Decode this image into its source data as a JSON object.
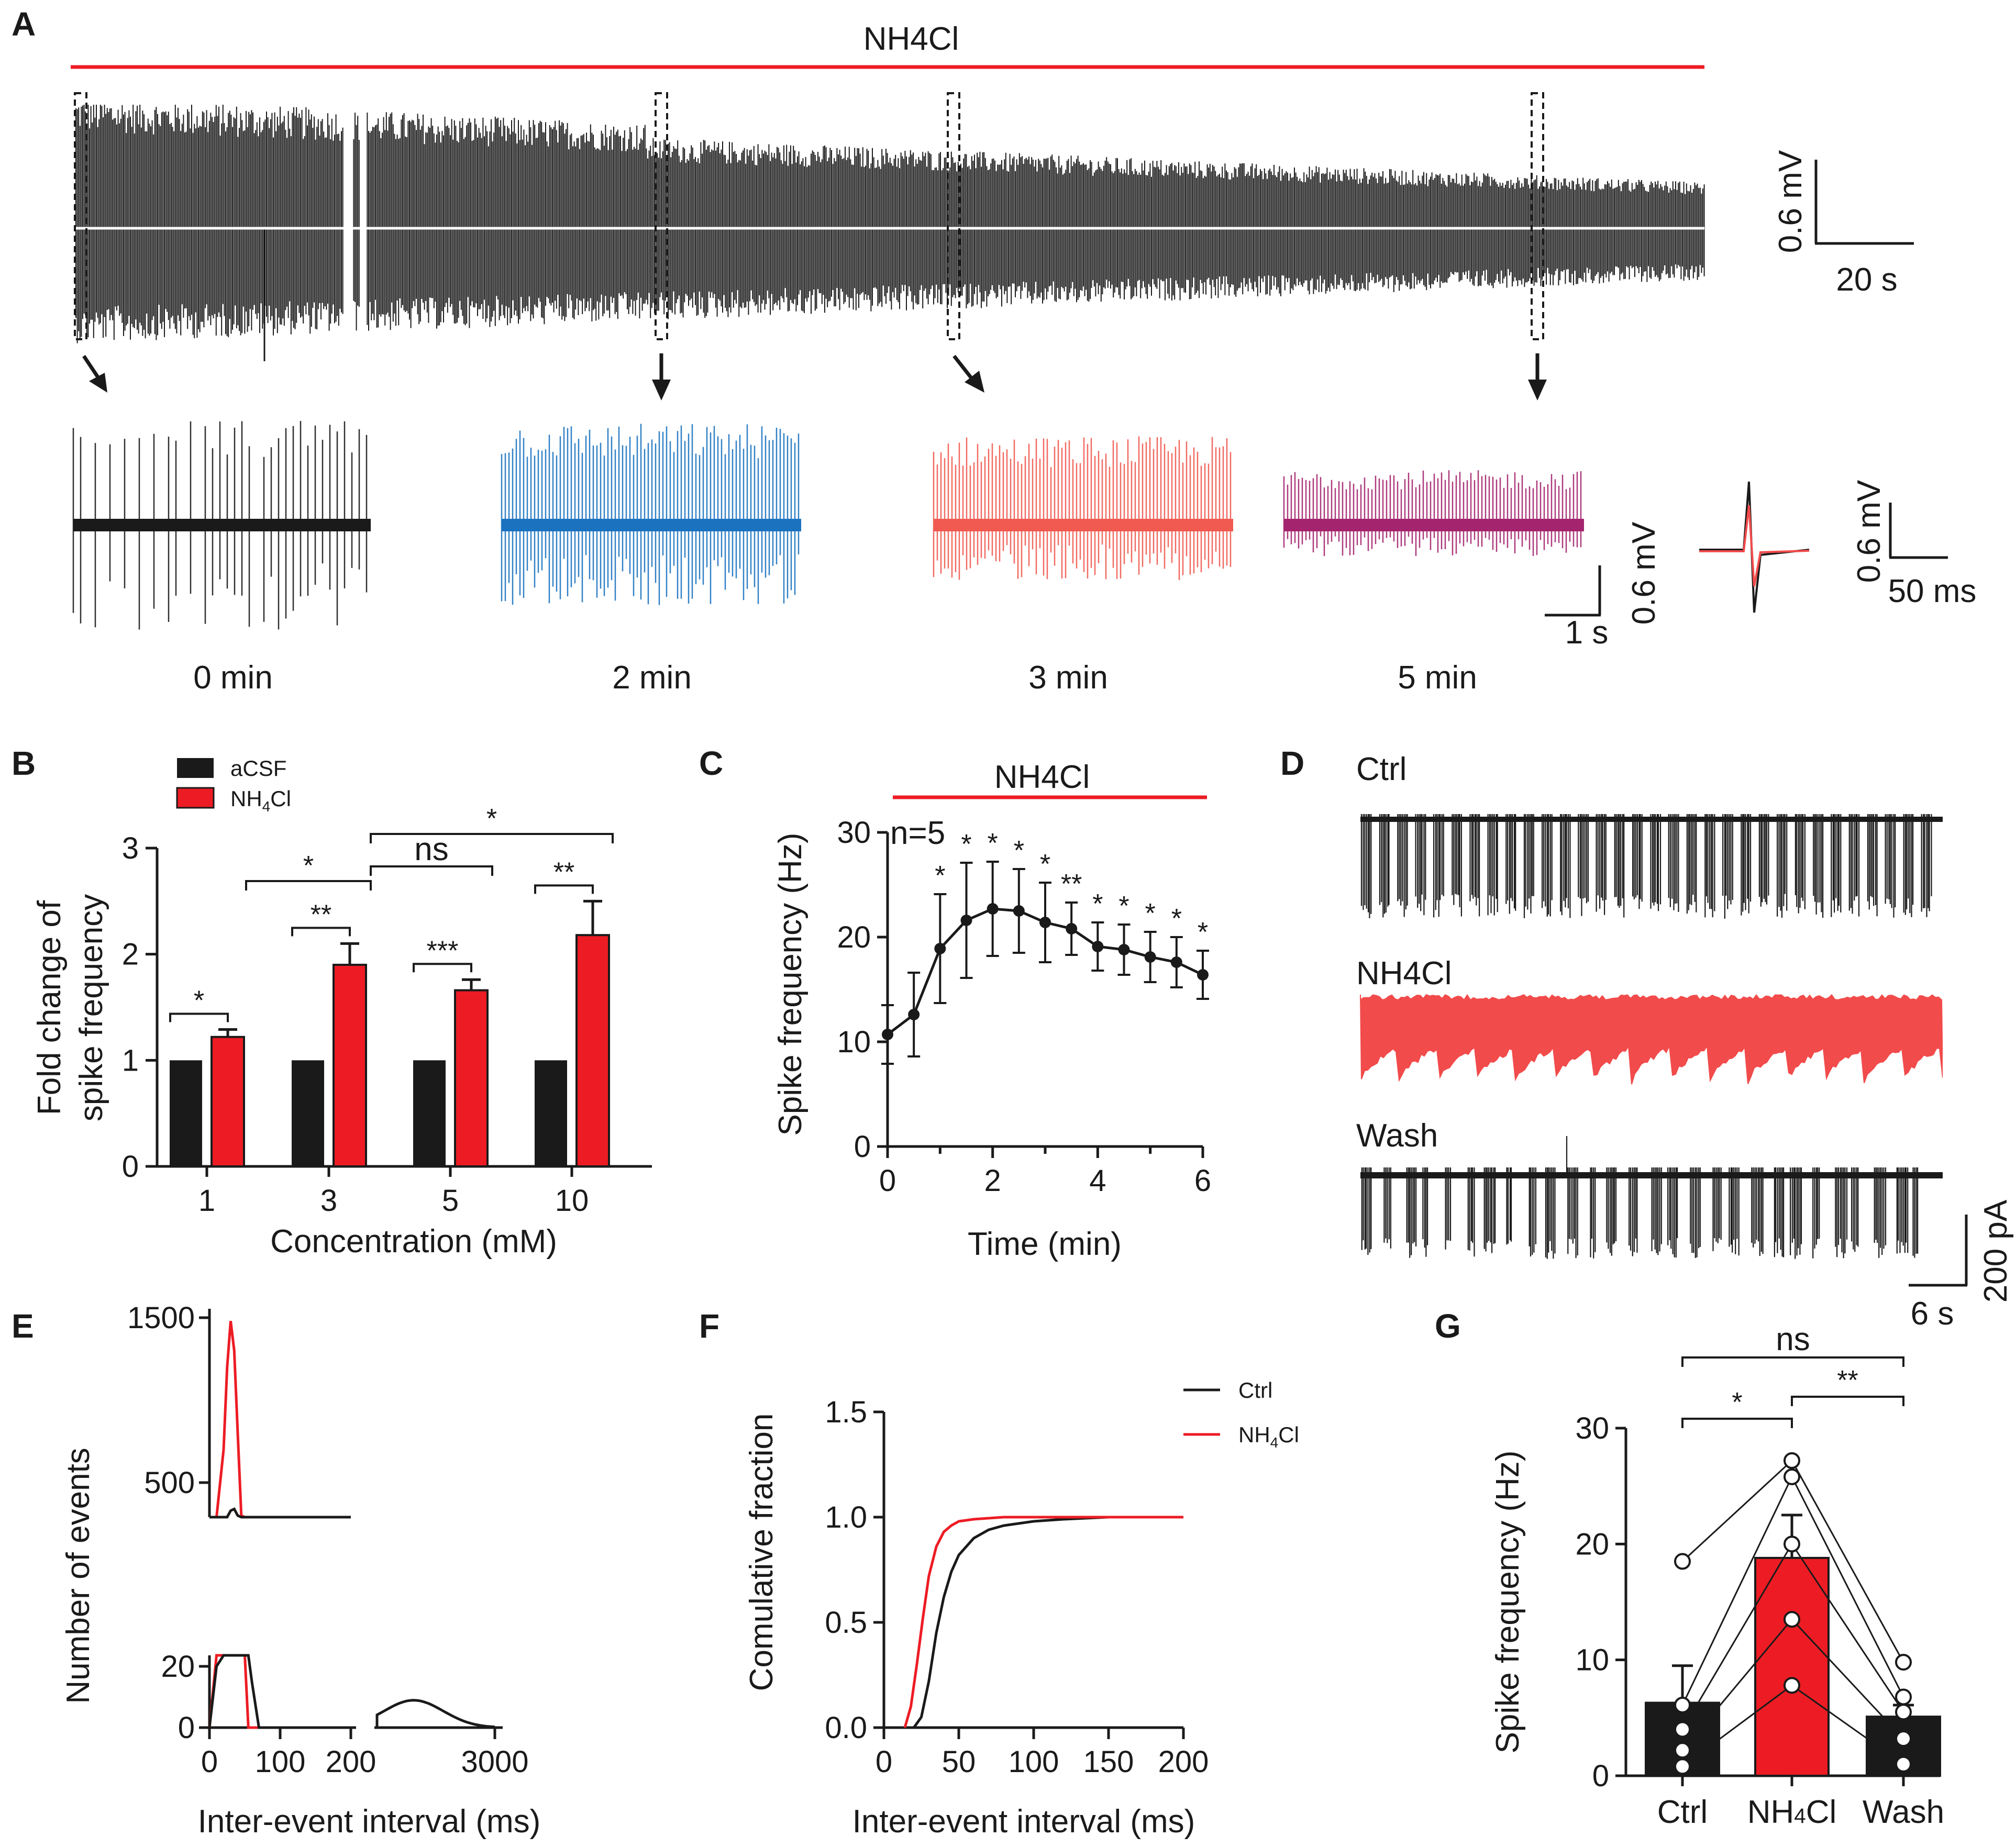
{
  "colors": {
    "black": "#1a1a1a",
    "red": "#ed1c24",
    "red_trace": "#f24b4b",
    "blue": "#1b73c0",
    "salmon": "#f05a50",
    "magenta": "#a4256e",
    "white": "#ffffff"
  },
  "panel_letters": [
    "A",
    "B",
    "C",
    "D",
    "E",
    "F",
    "G"
  ],
  "panelA": {
    "drug_label": "NH4Cl",
    "scale1": {
      "vertical": "0.6 mV",
      "horizontal": "20 s"
    },
    "insets": [
      {
        "time": "0 min",
        "color": "#1a1a1a"
      },
      {
        "time": "2 min",
        "color": "#1b73c0"
      },
      {
        "time": "3 min",
        "color": "#f05a50"
      },
      {
        "time": "5 min",
        "color": "#a4256e"
      }
    ],
    "scale2": {
      "vertical": "0.6 mV",
      "horizontal": "1 s"
    },
    "scale3": {
      "vertical": "0.6 mV",
      "horizontal": "50 ms"
    }
  },
  "panelD": {
    "traces": [
      "Ctrl",
      "NH4Cl",
      "Wash"
    ],
    "scale": {
      "vertical": "200 pA",
      "horizontal": "6 s"
    }
  },
  "chart_data": [
    {
      "id": "B",
      "type": "bar",
      "ylabel_line1": "Fold change of",
      "ylabel_line2": "spike frequency",
      "xlabel": "Concentration (mM)",
      "categories": [
        "1",
        "3",
        "5",
        "10"
      ],
      "yticks": [
        "0",
        "1",
        "2",
        "3"
      ],
      "ylim": [
        0,
        3
      ],
      "legend": [
        "aCSF",
        "NH4Cl"
      ],
      "series": [
        {
          "name": "aCSF",
          "values": [
            1,
            1,
            1,
            1
          ],
          "errors": [
            0,
            0,
            0,
            0
          ]
        },
        {
          "name": "NH4Cl",
          "values": [
            1.22,
            1.9,
            1.66,
            2.18
          ],
          "errors": [
            0.07,
            0.2,
            0.1,
            0.32
          ]
        }
      ],
      "within_sig": [
        "*",
        "**",
        "***",
        "**"
      ],
      "between_sig": [
        {
          "from": "1",
          "to": "3",
          "label": "*"
        },
        {
          "from": "3",
          "to": "5",
          "label": "ns"
        },
        {
          "from": "3",
          "to": "10",
          "label": "*"
        }
      ]
    },
    {
      "id": "C",
      "type": "line",
      "bar_label": "NH4Cl",
      "n_label": "n=5",
      "ylabel": "Spike frequency (Hz)",
      "xlabel": "Time (min)",
      "xticks": [
        "0",
        "2",
        "4",
        "6"
      ],
      "yticks": [
        "0",
        "10",
        "20",
        "30"
      ],
      "xlim": [
        0,
        6
      ],
      "ylim": [
        0,
        30
      ],
      "x": [
        0,
        0.5,
        1,
        1.5,
        2,
        2.5,
        3,
        3.5,
        4,
        4.5,
        5,
        5.5,
        6
      ],
      "values": [
        10.7,
        12.6,
        18.9,
        21.6,
        22.7,
        22.5,
        21.4,
        20.8,
        19.1,
        18.8,
        18.1,
        17.6,
        16.4
      ],
      "errors": [
        2.8,
        4.0,
        5.2,
        5.5,
        4.5,
        4.0,
        3.8,
        2.5,
        2.3,
        2.4,
        2.4,
        2.4,
        2.3
      ],
      "sig": [
        "",
        "",
        "*",
        "*",
        "*",
        "*",
        "*",
        "**",
        "*",
        "*",
        "*",
        "*",
        "*"
      ]
    },
    {
      "id": "E",
      "type": "line",
      "ylabel": "Number of events",
      "xlabel": "Inter-event interval (ms)",
      "yticks_top": [
        "500",
        "1500"
      ],
      "yticks_bottom": [
        "0",
        "20"
      ],
      "xticks_left": [
        "0",
        "100",
        "200"
      ],
      "xticks_right": [
        "3000"
      ],
      "x_left_ms": [
        0,
        10,
        20,
        25,
        30,
        35,
        40,
        45,
        50,
        55,
        60,
        70,
        80,
        100,
        200
      ],
      "series": [
        {
          "name": "NH4Cl",
          "color": "#ed1c24",
          "values": [
            0,
            100,
            700,
            1200,
            1480,
            1300,
            800,
            300,
            60,
            0,
            0,
            0,
            0,
            0,
            0
          ]
        },
        {
          "name": "Ctrl",
          "color": "#1a1a1a",
          "values": [
            0,
            20,
            100,
            220,
            330,
            340,
            300,
            220,
            120,
            50,
            15,
            0,
            0,
            0,
            0
          ]
        }
      ]
    },
    {
      "id": "F",
      "type": "line",
      "ylabel": "Comulative fraction",
      "xlabel": "Inter-event interval (ms)",
      "xticks": [
        "0",
        "50",
        "100",
        "150",
        "200"
      ],
      "yticks": [
        "0.0",
        "0.5",
        "1.0",
        "1.5"
      ],
      "xlim": [
        0,
        200
      ],
      "ylim": [
        0,
        1.5
      ],
      "legend": [
        "Ctrl",
        "NH4Cl"
      ],
      "series": [
        {
          "name": "Ctrl",
          "color": "#1a1a1a",
          "x": [
            20,
            25,
            30,
            35,
            40,
            45,
            50,
            60,
            70,
            80,
            100,
            120,
            150,
            200
          ],
          "values": [
            0,
            0.05,
            0.22,
            0.45,
            0.62,
            0.74,
            0.82,
            0.9,
            0.94,
            0.96,
            0.98,
            0.99,
            1.0,
            1.0
          ]
        },
        {
          "name": "NH4Cl",
          "color": "#ed1c24",
          "x": [
            14,
            18,
            22,
            26,
            30,
            35,
            40,
            45,
            50,
            60,
            80,
            100,
            200
          ],
          "values": [
            0,
            0.1,
            0.3,
            0.52,
            0.72,
            0.86,
            0.93,
            0.96,
            0.98,
            0.99,
            1.0,
            1.0,
            1.0
          ]
        }
      ]
    },
    {
      "id": "G",
      "type": "bar",
      "ylabel": "Spike frequency (Hz)",
      "categories": [
        "Ctrl",
        "NH4Cl",
        "Wash"
      ],
      "yticks": [
        "0",
        "10",
        "20",
        "30"
      ],
      "ylim": [
        0,
        30
      ],
      "values": [
        6.3,
        18.8,
        5.1
      ],
      "errors": [
        3.2,
        3.7,
        1.0
      ],
      "individual": [
        [
          18.5,
          27.2,
          9.8
        ],
        [
          6.1,
          25.8,
          6.8
        ],
        [
          4.0,
          20.0,
          5.5
        ],
        [
          2.2,
          13.5,
          3.2
        ],
        [
          0.8,
          7.8,
          1.0
        ]
      ],
      "sig": [
        {
          "from": "Ctrl",
          "to": "NH4Cl",
          "label": "*"
        },
        {
          "from": "NH4Cl",
          "to": "Wash",
          "label": "**"
        },
        {
          "from": "Ctrl",
          "to": "Wash",
          "label": "ns"
        }
      ]
    }
  ]
}
